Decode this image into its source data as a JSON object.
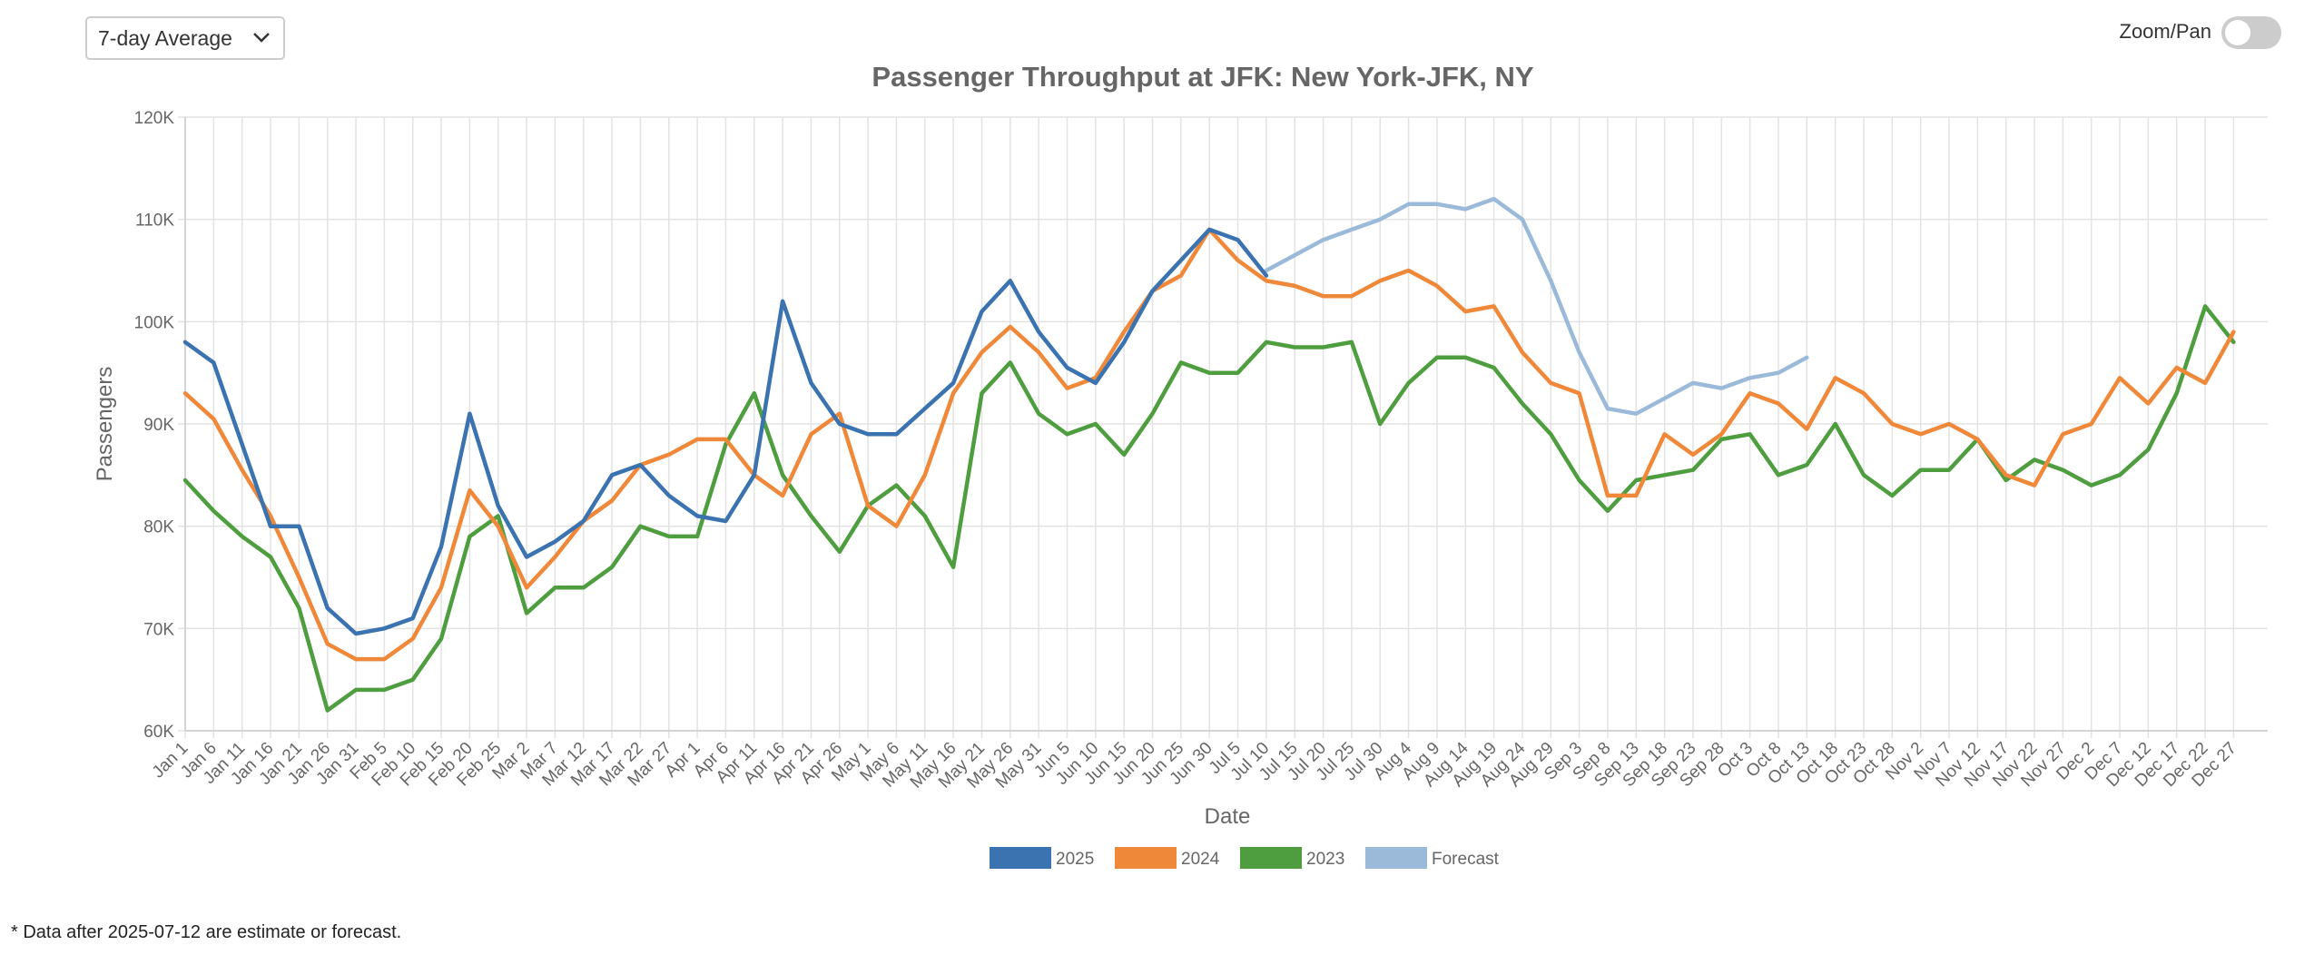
{
  "controls": {
    "dropdown": "7-day Average",
    "zoom_label": "Zoom/Pan"
  },
  "footnote": "* Data after 2025-07-12 are estimate or forecast.",
  "chart_data": {
    "type": "line",
    "title": "Passenger Throughput at JFK: New York-JFK, NY",
    "x_label": "Date",
    "y_label": "Passengers",
    "categories": [
      "Jan 1",
      "Jan 6",
      "Jan 11",
      "Jan 16",
      "Jan 21",
      "Jan 26",
      "Jan 31",
      "Feb 5",
      "Feb 10",
      "Feb 15",
      "Feb 20",
      "Feb 25",
      "Mar 2",
      "Mar 7",
      "Mar 12",
      "Mar 17",
      "Mar 22",
      "Mar 27",
      "Apr 1",
      "Apr 6",
      "Apr 11",
      "Apr 16",
      "Apr 21",
      "Apr 26",
      "May 1",
      "May 6",
      "May 11",
      "May 16",
      "May 21",
      "May 26",
      "May 31",
      "Jun 5",
      "Jun 10",
      "Jun 15",
      "Jun 20",
      "Jun 25",
      "Jun 30",
      "Jul 5",
      "Jul 10",
      "Jul 15",
      "Jul 20",
      "Jul 25",
      "Jul 30",
      "Aug 4",
      "Aug 9",
      "Aug 14",
      "Aug 19",
      "Aug 24",
      "Aug 29",
      "Sep 3",
      "Sep 8",
      "Sep 13",
      "Sep 18",
      "Sep 23",
      "Sep 28",
      "Oct 3",
      "Oct 8",
      "Oct 13",
      "Oct 18",
      "Oct 23",
      "Oct 28",
      "Nov 2",
      "Nov 7",
      "Nov 12",
      "Nov 17",
      "Nov 22",
      "Nov 27",
      "Dec 2",
      "Dec 7",
      "Dec 12",
      "Dec 17",
      "Dec 22",
      "Dec 27"
    ],
    "ylim": [
      60000,
      120000
    ],
    "yticks": [
      {
        "value": 60000,
        "label": "60K"
      },
      {
        "value": 70000,
        "label": "70K"
      },
      {
        "value": 80000,
        "label": "80K"
      },
      {
        "value": 90000,
        "label": "90K"
      },
      {
        "value": 100000,
        "label": "100K"
      },
      {
        "value": 110000,
        "label": "110K"
      },
      {
        "value": 120000,
        "label": "120K"
      }
    ],
    "grid": true,
    "legend": "bottom",
    "series": [
      {
        "name": "2025",
        "color": "#3b73b0",
        "values": [
          98000,
          96000,
          88000,
          80000,
          80000,
          72000,
          69500,
          70000,
          71000,
          78000,
          91000,
          82000,
          77000,
          78500,
          80500,
          85000,
          86000,
          83000,
          81000,
          80500,
          85000,
          102000,
          94000,
          90000,
          89000,
          89000,
          91500,
          94000,
          101000,
          104000,
          99000,
          95500,
          94000,
          98000,
          103000,
          106000,
          109000,
          108000,
          104500,
          null,
          null,
          null,
          null,
          null,
          null,
          null,
          null,
          null,
          null,
          null,
          null,
          null,
          null,
          null,
          null,
          null,
          null,
          null,
          null,
          null,
          null,
          null,
          null,
          null,
          null,
          null,
          null,
          null,
          null,
          null,
          null,
          null,
          null
        ]
      },
      {
        "name": "2024",
        "color": "#f0883a",
        "values": [
          93000,
          90500,
          85500,
          81000,
          75000,
          68500,
          67000,
          67000,
          69000,
          74000,
          83500,
          80000,
          74000,
          77000,
          80500,
          82500,
          86000,
          87000,
          88500,
          88500,
          85000,
          83000,
          89000,
          91000,
          82000,
          80000,
          85000,
          93000,
          97000,
          99500,
          97000,
          93500,
          94500,
          99000,
          103000,
          104500,
          109000,
          106000,
          104000,
          103500,
          102500,
          102500,
          104000,
          105000,
          103500,
          101000,
          101500,
          97000,
          94000,
          93000,
          83000,
          83000,
          89000,
          87000,
          89000,
          93000,
          92000,
          89500,
          94500,
          93000,
          90000,
          89000,
          90000,
          88500,
          85000,
          84000,
          89000,
          90000,
          94500,
          92000,
          95500,
          94000,
          99000
        ]
      },
      {
        "name": "2023",
        "color": "#4e9e3f",
        "values": [
          84500,
          81500,
          79000,
          77000,
          72000,
          62000,
          64000,
          64000,
          65000,
          69000,
          79000,
          81000,
          71500,
          74000,
          74000,
          76000,
          80000,
          79000,
          79000,
          88000,
          93000,
          85000,
          81000,
          77500,
          82000,
          84000,
          81000,
          76000,
          93000,
          96000,
          91000,
          89000,
          90000,
          87000,
          91000,
          96000,
          95000,
          95000,
          98000,
          97500,
          97500,
          98000,
          90000,
          94000,
          96500,
          96500,
          95500,
          92000,
          89000,
          84500,
          81500,
          84500,
          85000,
          85500,
          88500,
          89000,
          85000,
          86000,
          90000,
          85000,
          83000,
          85500,
          85500,
          88500,
          84500,
          86500,
          85500,
          84000,
          85000,
          87500,
          93000,
          101500,
          98000
        ]
      },
      {
        "name": "Forecast",
        "color": "#9bbad9",
        "values": [
          null,
          null,
          null,
          null,
          null,
          null,
          null,
          null,
          null,
          null,
          null,
          null,
          null,
          null,
          null,
          null,
          null,
          null,
          null,
          null,
          null,
          null,
          null,
          null,
          null,
          null,
          null,
          null,
          null,
          null,
          null,
          null,
          null,
          null,
          null,
          null,
          null,
          null,
          105000,
          106500,
          108000,
          109000,
          110000,
          111500,
          111500,
          111000,
          112000,
          110000,
          104000,
          97000,
          91500,
          91000,
          92500,
          94000,
          93500,
          94500,
          95000,
          96500,
          null,
          null,
          null,
          null,
          null,
          null,
          null,
          null,
          null,
          null,
          null,
          null,
          null,
          null,
          null
        ]
      }
    ]
  }
}
